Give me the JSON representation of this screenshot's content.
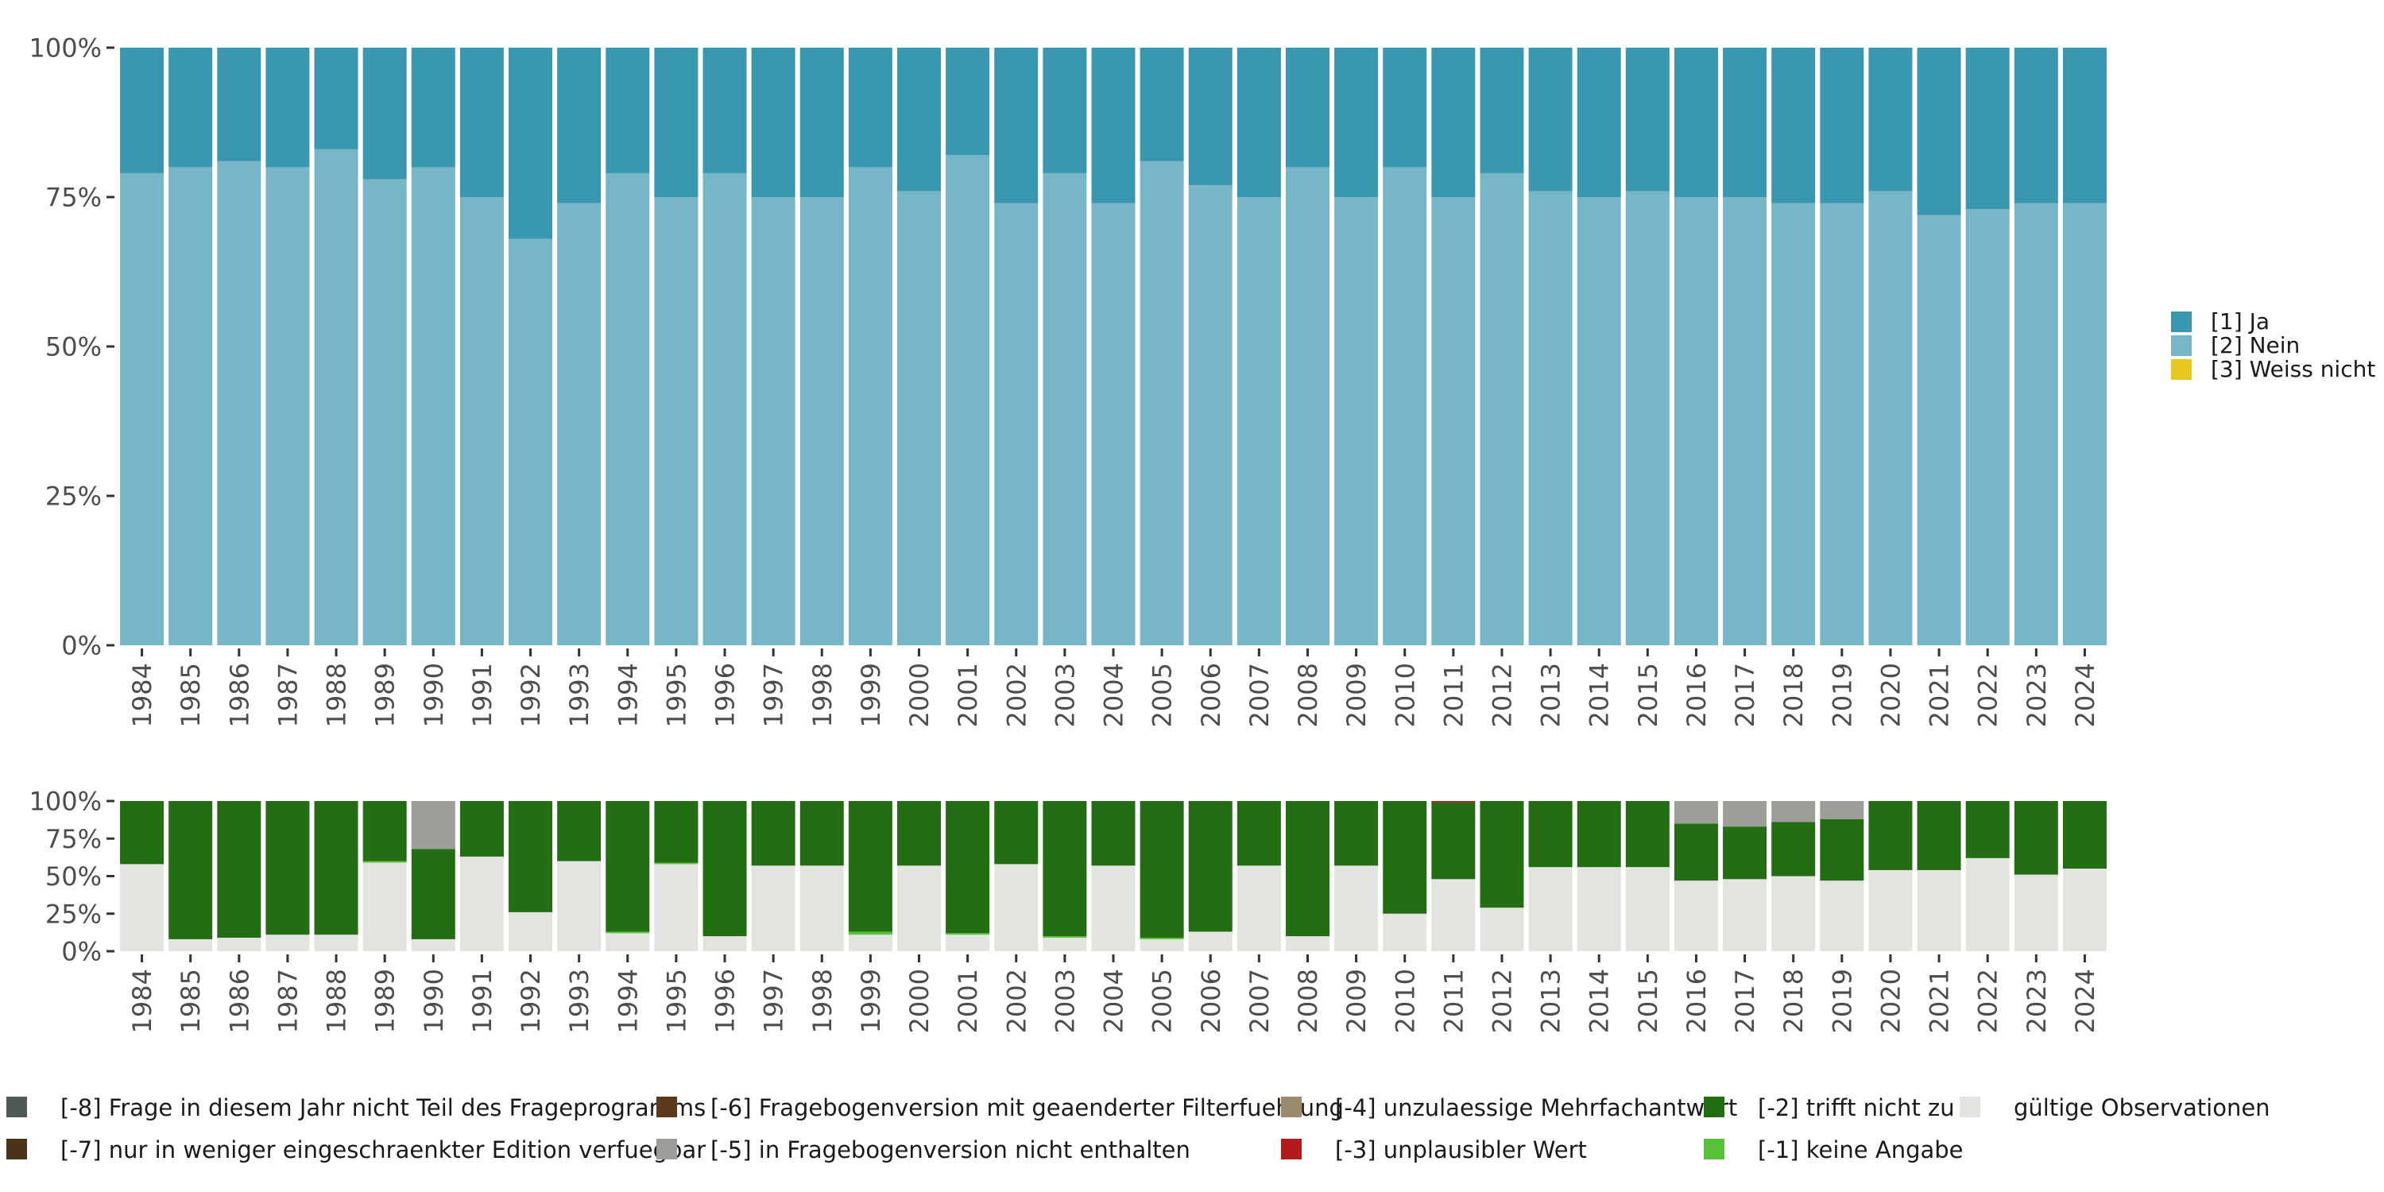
{
  "chart_data": [
    {
      "type": "bar",
      "stacked": true,
      "title": "",
      "xlabel": "",
      "ylabel": "",
      "ylim": [
        0,
        100
      ],
      "y_ticks": [
        "0%",
        "25%",
        "50%",
        "75%",
        "100%"
      ],
      "categories": [
        "1984",
        "1985",
        "1986",
        "1987",
        "1988",
        "1989",
        "1990",
        "1991",
        "1992",
        "1993",
        "1994",
        "1995",
        "1996",
        "1997",
        "1998",
        "1999",
        "2000",
        "2001",
        "2002",
        "2003",
        "2004",
        "2005",
        "2006",
        "2007",
        "2008",
        "2009",
        "2010",
        "2011",
        "2012",
        "2013",
        "2014",
        "2015",
        "2016",
        "2017",
        "2018",
        "2019",
        "2020",
        "2021",
        "2022",
        "2023",
        "2024"
      ],
      "series": [
        {
          "name": "[2] Nein",
          "color": "#76b6c6",
          "values": [
            79,
            80,
            81,
            80,
            83,
            78,
            80,
            75,
            68,
            74,
            79,
            75,
            79,
            75,
            75,
            80,
            76,
            82,
            74,
            79,
            74,
            81,
            77,
            75,
            80,
            75,
            80,
            75,
            79,
            76,
            75,
            76,
            75,
            75,
            74,
            74,
            76,
            72,
            73,
            74,
            74
          ]
        },
        {
          "name": "[1] Ja",
          "color": "#3a97b0",
          "values": [
            21,
            20,
            19,
            20,
            17,
            22,
            20,
            25,
            32,
            26,
            21,
            25,
            21,
            25,
            25,
            20,
            24,
            18,
            26,
            21,
            26,
            19,
            23,
            25,
            20,
            25,
            20,
            25,
            21,
            24,
            25,
            24,
            25,
            25,
            26,
            26,
            24,
            28,
            27,
            26,
            26
          ]
        },
        {
          "name": "[3] Weiss nicht",
          "color": "#e8c81e",
          "values": [
            0,
            0,
            0,
            0,
            0,
            0,
            0,
            0,
            0,
            0,
            0,
            0,
            0,
            0,
            0,
            0,
            0,
            0,
            0,
            0,
            0,
            0,
            0,
            0,
            0,
            0,
            0,
            0,
            0,
            0,
            0,
            0,
            0,
            0,
            0,
            0,
            0,
            0,
            0,
            0,
            0
          ]
        }
      ],
      "legend": [
        "[1] Ja",
        "[2] Nein",
        "[3] Weiss nicht"
      ]
    },
    {
      "type": "bar",
      "stacked": true,
      "title": "",
      "xlabel": "",
      "ylabel": "",
      "ylim": [
        0,
        100
      ],
      "y_ticks": [
        "0%",
        "25%",
        "50%",
        "75%",
        "100%"
      ],
      "categories": [
        "1984",
        "1985",
        "1986",
        "1987",
        "1988",
        "1989",
        "1990",
        "1991",
        "1992",
        "1993",
        "1994",
        "1995",
        "1996",
        "1997",
        "1998",
        "1999",
        "2000",
        "2001",
        "2002",
        "2003",
        "2004",
        "2005",
        "2006",
        "2007",
        "2008",
        "2009",
        "2010",
        "2011",
        "2012",
        "2013",
        "2014",
        "2015",
        "2016",
        "2017",
        "2018",
        "2019",
        "2020",
        "2021",
        "2022",
        "2023",
        "2024"
      ],
      "series": [
        {
          "name": "gültige Observationen",
          "color": "#e1e4df",
          "values": [
            58,
            8,
            9,
            11,
            11,
            59,
            8,
            63,
            26,
            60,
            12,
            58,
            10,
            57,
            57,
            11,
            57,
            11,
            58,
            9,
            57,
            8,
            13,
            57,
            10,
            57,
            25,
            48,
            29,
            56,
            56,
            56,
            47,
            48,
            50,
            47,
            54,
            54,
            62,
            51,
            55
          ]
        },
        {
          "name": "[-1] keine Angabe",
          "color": "#56c23a",
          "values": [
            0,
            0,
            0,
            0,
            0,
            1,
            0,
            0,
            0,
            0,
            1,
            1,
            0,
            0,
            0,
            2,
            0,
            1,
            0,
            1,
            0,
            1,
            0,
            0,
            0,
            0,
            0,
            0,
            0,
            0,
            0,
            0,
            0,
            0,
            0,
            0,
            0,
            0,
            0,
            0,
            0
          ]
        },
        {
          "name": "[-2] trifft nicht zu",
          "color": "#236d12",
          "values": [
            42,
            92,
            91,
            89,
            89,
            40,
            60,
            37,
            74,
            40,
            87,
            41,
            90,
            43,
            43,
            87,
            43,
            88,
            42,
            90,
            43,
            91,
            87,
            43,
            90,
            43,
            75,
            51,
            71,
            44,
            44,
            44,
            38,
            35,
            36,
            41,
            46,
            46,
            38,
            49,
            45
          ]
        },
        {
          "name": "[-3] unplausibler Wert",
          "color": "#b31b1b",
          "values": [
            0,
            0,
            0,
            0,
            0,
            0,
            0,
            0,
            0,
            0,
            0,
            0,
            0,
            0,
            0,
            0,
            0,
            0,
            0,
            0,
            0,
            0,
            0,
            0,
            0,
            0,
            0,
            1,
            0,
            0,
            0,
            0,
            0,
            0,
            0,
            0,
            0,
            0,
            0,
            0,
            0
          ]
        },
        {
          "name": "[-4] unzulaessige Mehrfachantwort",
          "color": "#9c8a6e",
          "values": [
            0,
            0,
            0,
            0,
            0,
            0,
            0,
            0,
            0,
            0,
            0,
            0,
            0,
            0,
            0,
            0,
            0,
            0,
            0,
            0,
            0,
            0,
            0,
            0,
            0,
            0,
            0,
            0,
            0,
            0,
            0,
            0,
            0,
            0,
            0,
            0,
            0,
            0,
            0,
            0,
            0
          ]
        },
        {
          "name": "[-5] in Fragebogenversion nicht enthalten",
          "color": "#9c9e98",
          "values": [
            0,
            0,
            0,
            0,
            0,
            0,
            32,
            0,
            0,
            0,
            0,
            0,
            0,
            0,
            0,
            0,
            0,
            0,
            0,
            0,
            0,
            0,
            0,
            0,
            0,
            0,
            0,
            0,
            0,
            0,
            0,
            0,
            15,
            17,
            14,
            12,
            0,
            0,
            0,
            0,
            0
          ]
        },
        {
          "name": "[-6] Fragebogenversion mit geaenderter Filterfuehrung",
          "color": "#5a3a1a",
          "values": [
            0,
            0,
            0,
            0,
            0,
            0,
            0,
            0,
            0,
            0,
            0,
            0,
            0,
            0,
            0,
            0,
            0,
            0,
            0,
            0,
            0,
            0,
            0,
            0,
            0,
            0,
            0,
            0,
            0,
            0,
            0,
            0,
            0,
            0,
            0,
            0,
            0,
            0,
            0,
            0,
            0
          ]
        },
        {
          "name": "[-7] nur in weniger eingeschraenkter Edition verfuegbar",
          "color": "#4a3318",
          "values": [
            0,
            0,
            0,
            0,
            0,
            0,
            0,
            0,
            0,
            0,
            0,
            0,
            0,
            0,
            0,
            0,
            0,
            0,
            0,
            0,
            0,
            0,
            0,
            0,
            0,
            0,
            0,
            0,
            0,
            0,
            0,
            0,
            0,
            0,
            0,
            0,
            0,
            0,
            0,
            0,
            0
          ]
        },
        {
          "name": "[-8] Frage in diesem Jahr nicht Teil des Frageprogramms",
          "color": "#4f5a55",
          "values": [
            0,
            0,
            0,
            0,
            0,
            0,
            0,
            0,
            0,
            0,
            0,
            0,
            0,
            0,
            0,
            0,
            0,
            0,
            0,
            0,
            0,
            0,
            0,
            0,
            0,
            0,
            0,
            0,
            0,
            0,
            0,
            0,
            0,
            0,
            0,
            0,
            0,
            0,
            0,
            0,
            0
          ]
        }
      ],
      "legend": [
        {
          "label": "[-8] Frage in diesem Jahr nicht Teil des Frageprogramms",
          "color": "#4f5a55"
        },
        {
          "label": "[-7] nur in weniger eingeschraenkter Edition verfuegbar",
          "color": "#4a3318"
        },
        {
          "label": "[-6] Fragebogenversion mit geaenderter Filterfuehrung",
          "color": "#5a3a1a"
        },
        {
          "label": "[-5] in Fragebogenversion nicht enthalten",
          "color": "#9c9e98"
        },
        {
          "label": "[-4] unzulaessige Mehrfachantwort",
          "color": "#9c8a6e"
        },
        {
          "label": "[-3] unplausibler Wert",
          "color": "#b31b1b"
        },
        {
          "label": "[-2] trifft nicht zu",
          "color": "#236d12"
        },
        {
          "label": "[-1] keine Angabe",
          "color": "#56c23a"
        },
        {
          "label": "gültige Observationen",
          "color": "#e1e4df"
        }
      ]
    }
  ]
}
